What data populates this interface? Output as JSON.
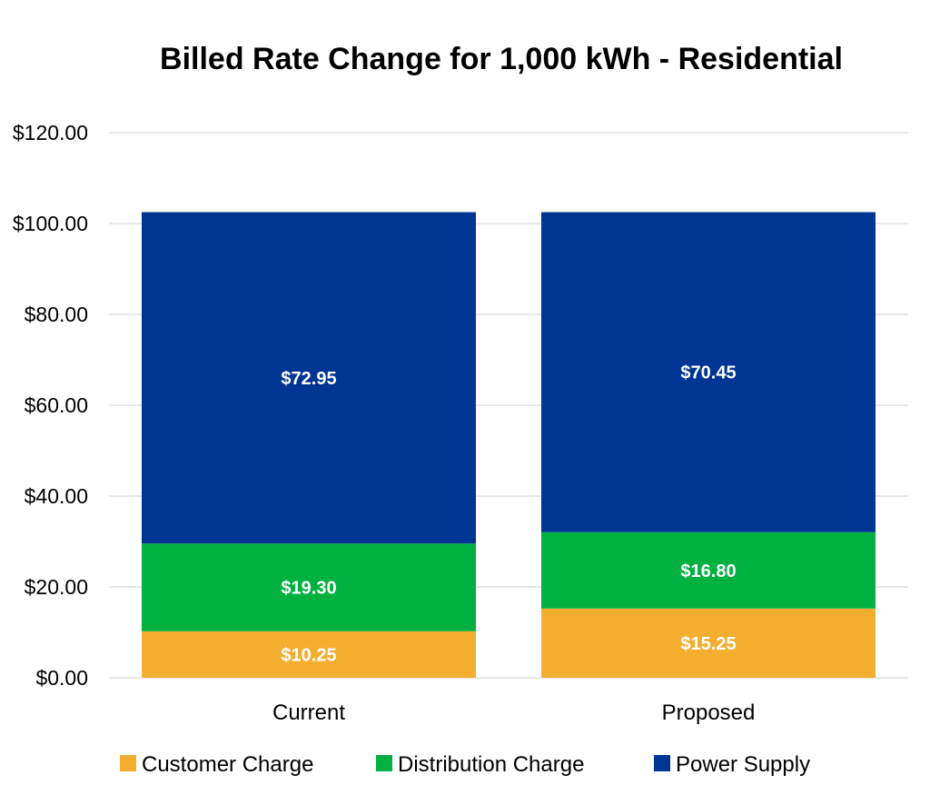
{
  "chart_data": {
    "type": "bar",
    "stacked": true,
    "title": "Billed Rate Change for 1,000 kWh - Residential",
    "categories": [
      "Current",
      "Proposed"
    ],
    "series": [
      {
        "name": "Customer Charge",
        "color": "#f4ae2f",
        "values": [
          10.25,
          15.25
        ],
        "labels": [
          "$10.25",
          "$15.25"
        ]
      },
      {
        "name": "Distribution Charge",
        "color": "#00b140",
        "values": [
          19.3,
          16.8
        ],
        "labels": [
          "$19.30",
          "$16.80"
        ]
      },
      {
        "name": "Power Supply",
        "color": "#003594",
        "values": [
          72.95,
          70.45
        ],
        "labels": [
          "$72.95",
          "$70.45"
        ]
      }
    ],
    "yticks": [
      "$0.00",
      "$20.00",
      "$40.00",
      "$60.00",
      "$80.00",
      "$100.00",
      "$120.00"
    ],
    "ylim": [
      0,
      120
    ],
    "grid": true,
    "legend_position": "bottom"
  }
}
